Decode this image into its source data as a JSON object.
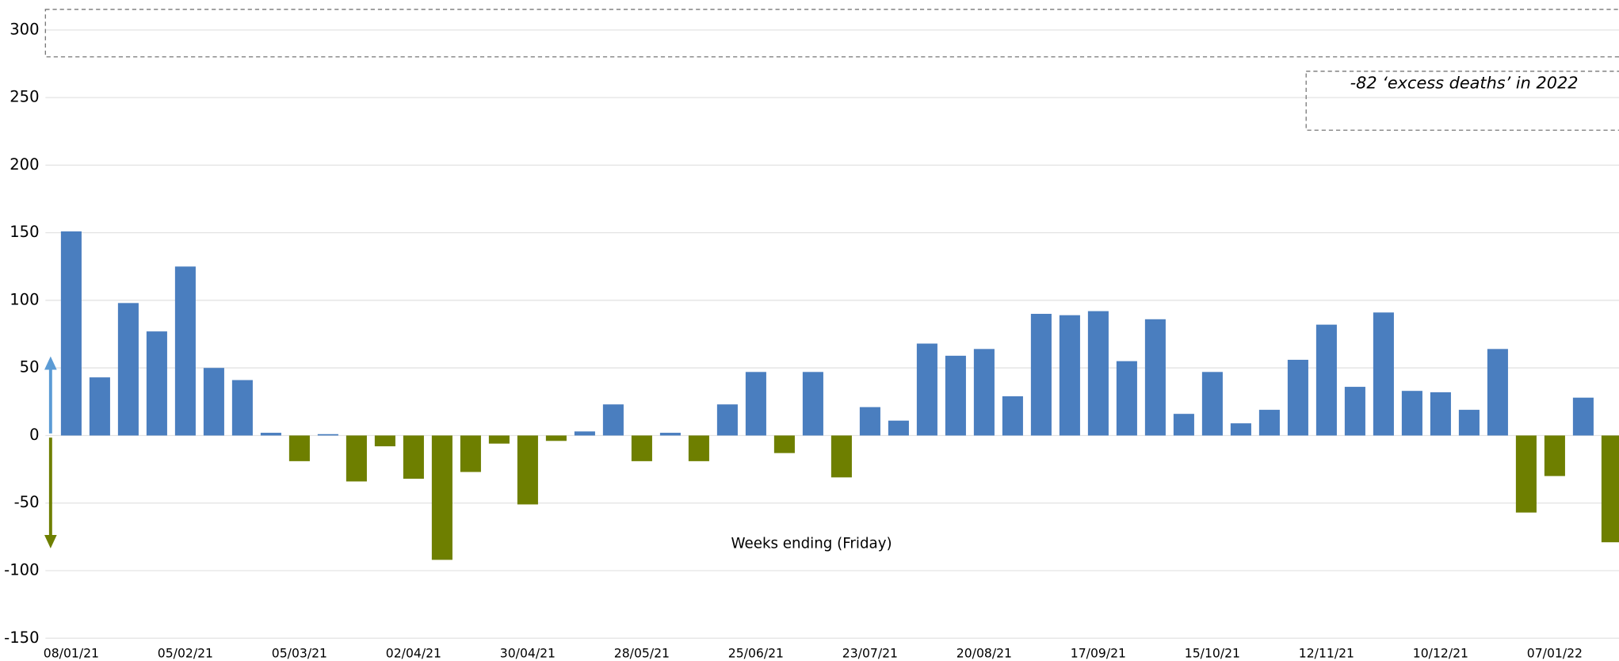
{
  "chart_data": {
    "type": "bar",
    "x_label": "Weeks ending (Friday)",
    "annotation": "-82 ‘excess deaths’ in 2022",
    "categories": [
      "08/01/21",
      null,
      null,
      null,
      "05/02/21",
      null,
      null,
      null,
      "05/03/21",
      null,
      null,
      null,
      "02/04/21",
      null,
      null,
      null,
      "30/04/21",
      null,
      null,
      null,
      "28/05/21",
      null,
      null,
      null,
      "25/06/21",
      null,
      null,
      null,
      "23/07/21",
      null,
      null,
      null,
      "20/08/21",
      null,
      null,
      null,
      "17/09/21",
      null,
      null,
      null,
      "15/10/21",
      null,
      null,
      null,
      "12/11/21",
      null,
      null,
      null,
      "10/12/21",
      null,
      null,
      null,
      "07/01/22",
      null,
      null
    ],
    "values": [
      151,
      43,
      98,
      77,
      125,
      50,
      41,
      2,
      -19,
      1,
      -34,
      -8,
      -32,
      -92,
      -27,
      -6,
      -51,
      -4,
      3,
      23,
      -19,
      2,
      -19,
      23,
      47,
      -13,
      47,
      -31,
      21,
      11,
      68,
      59,
      64,
      29,
      90,
      89,
      92,
      55,
      86,
      16,
      47,
      9,
      19,
      56,
      82,
      36,
      91,
      33,
      32,
      19,
      64,
      -57,
      -30,
      28,
      -79
    ],
    "positive_color": "#4a7ebf",
    "negative_color": "#6e7f00",
    "ylim": [
      -150,
      300
    ],
    "yticks": [
      -150,
      -100,
      -50,
      0,
      50,
      100,
      150,
      200,
      250,
      300
    ],
    "grid": true
  }
}
